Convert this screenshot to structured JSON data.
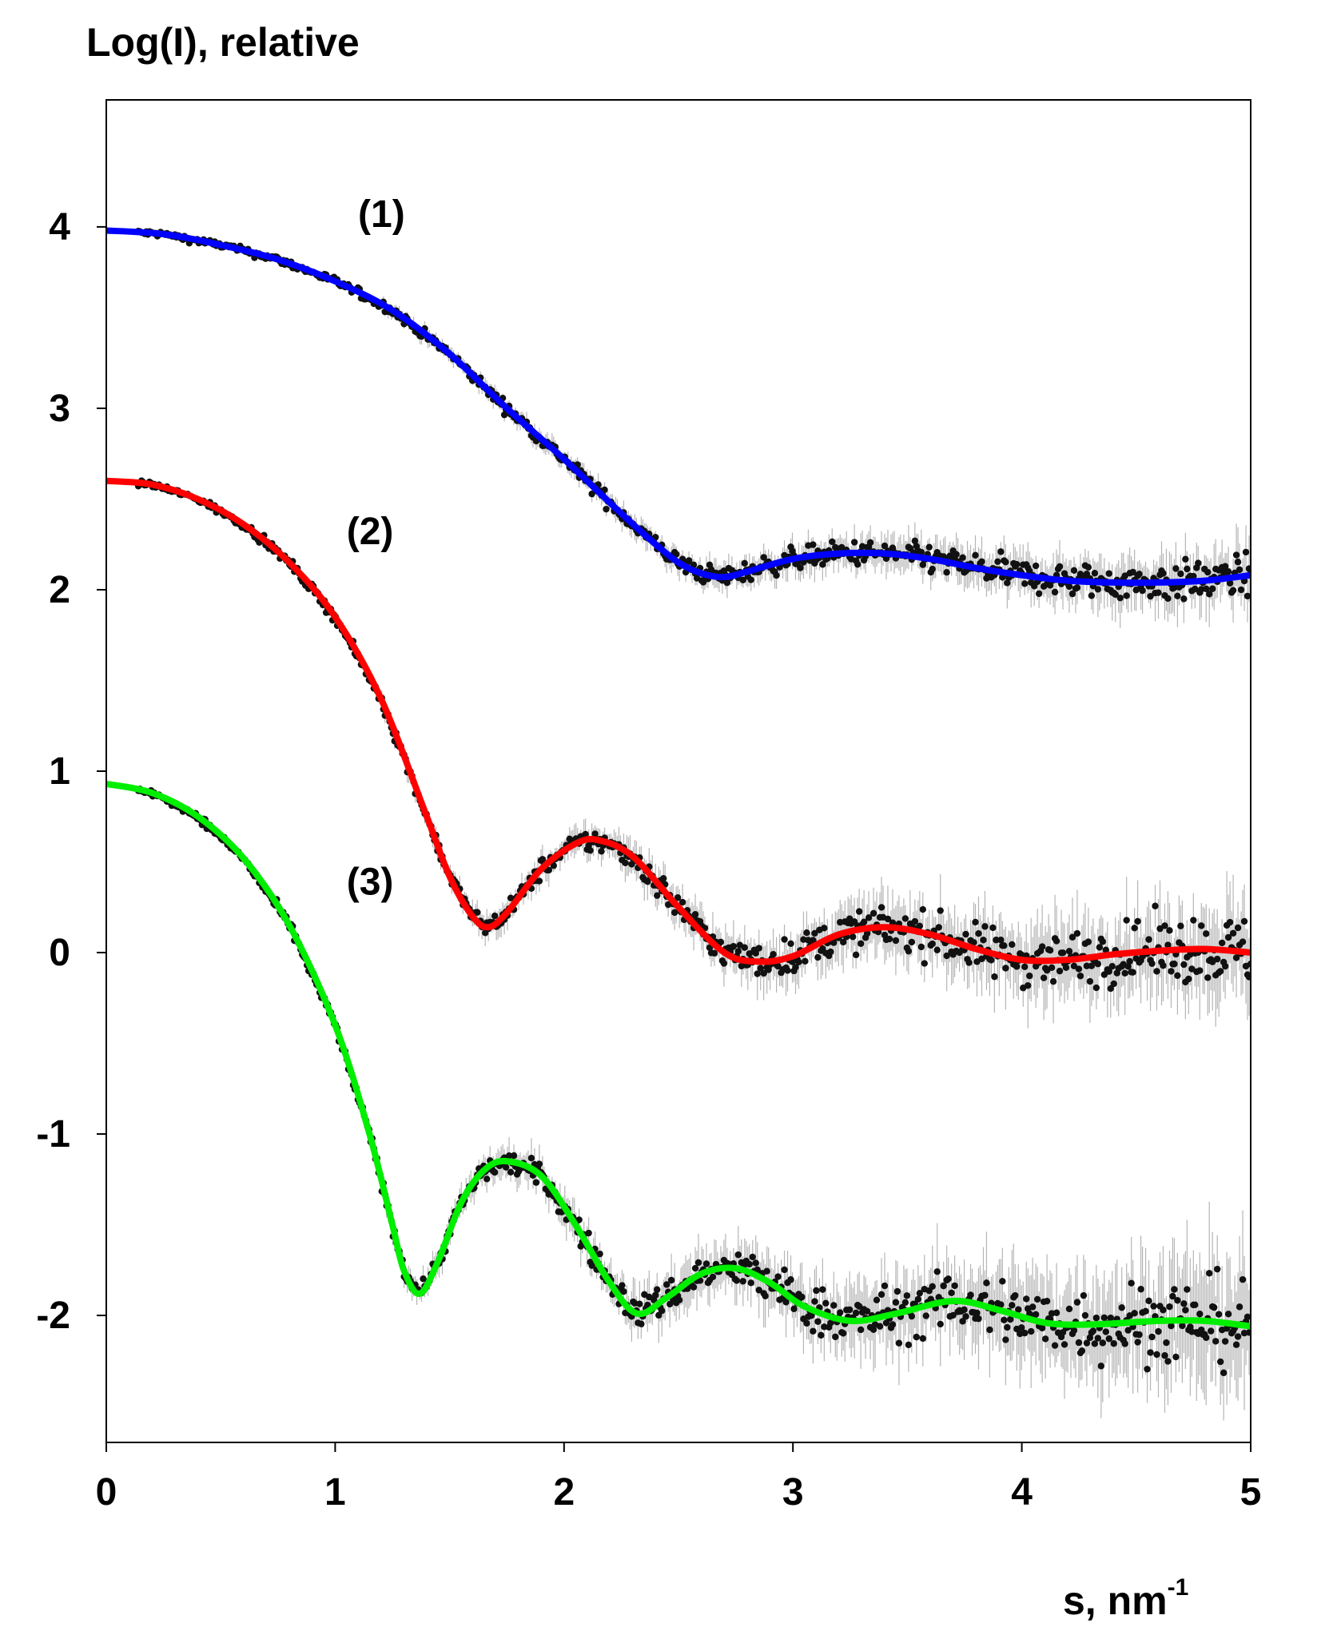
{
  "chart_data": {
    "type": "scatter",
    "ylabel": "Log(I), relative",
    "xlabel_main": "s, nm",
    "xlabel_sup": "-1",
    "xlim": [
      0,
      5
    ],
    "ylim": [
      -2.7,
      4.7
    ],
    "x_ticks": [
      {
        "value": 0,
        "label": "0"
      },
      {
        "value": 1,
        "label": "1"
      },
      {
        "value": 2,
        "label": "2"
      },
      {
        "value": 3,
        "label": "3"
      },
      {
        "value": 4,
        "label": "4"
      },
      {
        "value": 5,
        "label": "5"
      }
    ],
    "y_ticks": [
      {
        "value": 4,
        "label": "4"
      },
      {
        "value": 3,
        "label": "3"
      },
      {
        "value": 2,
        "label": "2"
      },
      {
        "value": 1,
        "label": "1"
      },
      {
        "value": 0,
        "label": "0"
      },
      {
        "value": -1,
        "label": "-1"
      },
      {
        "value": -2,
        "label": "-2"
      }
    ],
    "grid": false,
    "series": [
      {
        "label": "(1)",
        "label_at": [
          1.1,
          4.0
        ],
        "color": "#0000ff",
        "noise": 0.05,
        "fit": [
          [
            0,
            3.98
          ],
          [
            0.25,
            3.96
          ],
          [
            0.5,
            3.9
          ],
          [
            0.75,
            3.82
          ],
          [
            1.0,
            3.7
          ],
          [
            1.25,
            3.54
          ],
          [
            1.5,
            3.3
          ],
          [
            1.75,
            3.0
          ],
          [
            2.0,
            2.72
          ],
          [
            2.25,
            2.42
          ],
          [
            2.4,
            2.25
          ],
          [
            2.5,
            2.15
          ],
          [
            2.6,
            2.09
          ],
          [
            2.7,
            2.07
          ],
          [
            2.8,
            2.1
          ],
          [
            3.0,
            2.17
          ],
          [
            3.2,
            2.2
          ],
          [
            3.4,
            2.2
          ],
          [
            3.6,
            2.17
          ],
          [
            3.8,
            2.12
          ],
          [
            4.0,
            2.08
          ],
          [
            4.2,
            2.05
          ],
          [
            4.4,
            2.04
          ],
          [
            4.6,
            2.04
          ],
          [
            4.8,
            2.05
          ],
          [
            5.0,
            2.08
          ]
        ]
      },
      {
        "label": "(2)",
        "label_at": [
          1.05,
          2.25
        ],
        "color": "#ff0000",
        "noise": 0.09,
        "fit": [
          [
            0,
            2.6
          ],
          [
            0.2,
            2.58
          ],
          [
            0.4,
            2.5
          ],
          [
            0.6,
            2.36
          ],
          [
            0.8,
            2.15
          ],
          [
            1.0,
            1.85
          ],
          [
            1.2,
            1.4
          ],
          [
            1.4,
            0.75
          ],
          [
            1.5,
            0.42
          ],
          [
            1.6,
            0.2
          ],
          [
            1.67,
            0.14
          ],
          [
            1.75,
            0.22
          ],
          [
            1.9,
            0.46
          ],
          [
            2.05,
            0.6
          ],
          [
            2.15,
            0.62
          ],
          [
            2.3,
            0.53
          ],
          [
            2.5,
            0.25
          ],
          [
            2.7,
            0.0
          ],
          [
            2.85,
            -0.05
          ],
          [
            3.0,
            -0.02
          ],
          [
            3.2,
            0.1
          ],
          [
            3.4,
            0.14
          ],
          [
            3.6,
            0.1
          ],
          [
            3.8,
            0.02
          ],
          [
            4.0,
            -0.04
          ],
          [
            4.2,
            -0.04
          ],
          [
            4.4,
            -0.01
          ],
          [
            4.6,
            0.01
          ],
          [
            4.8,
            0.02
          ],
          [
            5.0,
            0.0
          ]
        ]
      },
      {
        "label": "(3)",
        "label_at": [
          1.05,
          0.32
        ],
        "color": "#00ee00",
        "noise": 0.12,
        "fit": [
          [
            0,
            0.93
          ],
          [
            0.2,
            0.88
          ],
          [
            0.4,
            0.75
          ],
          [
            0.6,
            0.52
          ],
          [
            0.8,
            0.15
          ],
          [
            1.0,
            -0.4
          ],
          [
            1.15,
            -1.0
          ],
          [
            1.25,
            -1.5
          ],
          [
            1.3,
            -1.75
          ],
          [
            1.37,
            -1.88
          ],
          [
            1.45,
            -1.7
          ],
          [
            1.55,
            -1.38
          ],
          [
            1.65,
            -1.2
          ],
          [
            1.75,
            -1.15
          ],
          [
            1.9,
            -1.23
          ],
          [
            2.05,
            -1.5
          ],
          [
            2.2,
            -1.82
          ],
          [
            2.32,
            -1.99
          ],
          [
            2.45,
            -1.9
          ],
          [
            2.6,
            -1.77
          ],
          [
            2.75,
            -1.74
          ],
          [
            2.9,
            -1.82
          ],
          [
            3.05,
            -1.95
          ],
          [
            3.25,
            -2.03
          ],
          [
            3.45,
            -1.99
          ],
          [
            3.7,
            -1.92
          ],
          [
            3.9,
            -1.97
          ],
          [
            4.1,
            -2.04
          ],
          [
            4.3,
            -2.05
          ],
          [
            4.6,
            -2.03
          ],
          [
            4.8,
            -2.03
          ],
          [
            5.0,
            -2.06
          ]
        ]
      }
    ]
  }
}
